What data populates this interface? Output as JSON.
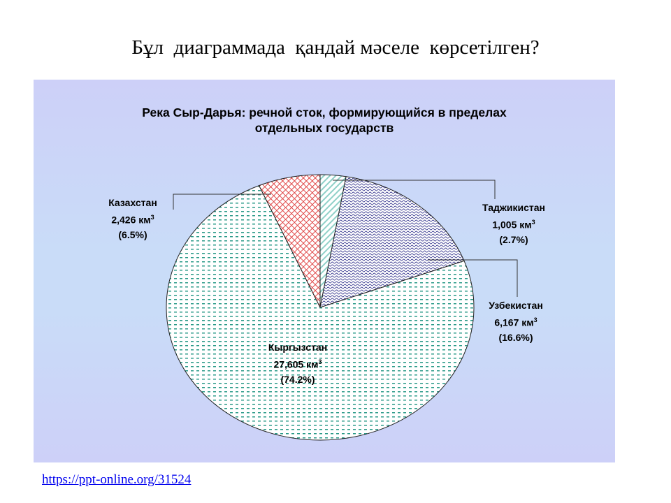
{
  "slide_title": "Бұл  диаграммада  қандай мәселе  көрсетілген?",
  "source_link": "https://ppt-online.org/31524",
  "chart_data": {
    "type": "pie",
    "title": "Река Сыр-Дарья: речной сток, формирующийся в пределах отдельных государств",
    "title_lines": [
      "Река Сыр-Дарья: речной сток, формирующийся в пределах",
      "отдельных государств"
    ],
    "unit": "км",
    "unit_sup": "3",
    "slices": [
      {
        "name": "Таджикистан",
        "value_label": "1,005 км",
        "value": 1.005,
        "percent": 2.7,
        "percent_label": "(2.7%)",
        "color": "#8fd0c8",
        "pattern": "diagonal"
      },
      {
        "name": "Узбекистан",
        "value_label": "6,167 км",
        "value": 6.167,
        "percent": 16.6,
        "percent_label": "(16.6%)",
        "color": "#3a3a90",
        "pattern": "wave"
      },
      {
        "name": "Кыргызстан",
        "value_label": "27,605 км",
        "value": 27.605,
        "percent": 74.2,
        "percent_label": "(74.2%)",
        "color": "#2a9a88",
        "pattern": "dash"
      },
      {
        "name": "Казахстан",
        "value_label": "2,426 км",
        "value": 2.426,
        "percent": 6.5,
        "percent_label": "(6.5%)",
        "color": "#e04848",
        "pattern": "cross"
      }
    ]
  }
}
